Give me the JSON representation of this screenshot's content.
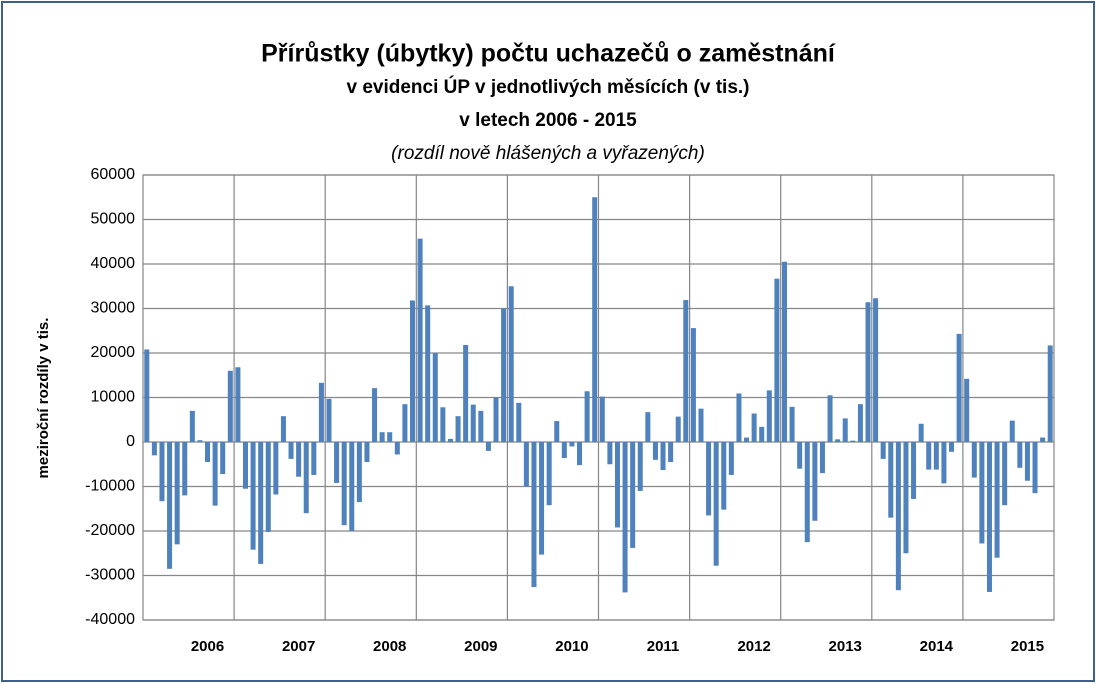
{
  "chart_data": {
    "type": "bar",
    "title": "Přírůstky (úbytky) počtu uchazečů o zaměstnání",
    "subtitle": "v evidenci ÚP v jednotlivých měsících (v tis.)",
    "subtitle2": "v letech 2006 - 2015",
    "note": "(rozdíl nově hlášených a vyřazených)",
    "y_label": "meziroční rozdíly v tis.",
    "categories": [
      null,
      null,
      null,
      null,
      null,
      null,
      null,
      null,
      "2006",
      null,
      null,
      null,
      null,
      null,
      null,
      null,
      null,
      null,
      null,
      null,
      "2007",
      null,
      null,
      null,
      null,
      null,
      null,
      null,
      null,
      null,
      null,
      null,
      "2008",
      null,
      null,
      null,
      null,
      null,
      null,
      null,
      null,
      null,
      null,
      null,
      "2009",
      null,
      null,
      null,
      null,
      null,
      null,
      null,
      null,
      null,
      null,
      null,
      "2010",
      null,
      null,
      null,
      null,
      null,
      null,
      null,
      null,
      null,
      null,
      null,
      "2011",
      null,
      null,
      null,
      null,
      null,
      null,
      null,
      null,
      null,
      null,
      null,
      "2012",
      null,
      null,
      null,
      null,
      null,
      null,
      null,
      null,
      null,
      null,
      null,
      "2013",
      null,
      null,
      null,
      null,
      null,
      null,
      null,
      null,
      null,
      null,
      null,
      "2014",
      null,
      null,
      null,
      null,
      null,
      null,
      null,
      null,
      null,
      null,
      null,
      "2015",
      null,
      null,
      null
    ],
    "values": [
      20800,
      -3000,
      -13300,
      -28500,
      -23000,
      -12000,
      7000,
      400,
      -4500,
      -14300,
      -7200,
      16000,
      16800,
      -10500,
      -24200,
      -27400,
      -20200,
      -11800,
      5800,
      -3800,
      -7800,
      -16000,
      -7400,
      13300,
      9700,
      -9200,
      -18700,
      -20000,
      -13500,
      -4500,
      12100,
      2200,
      2200,
      -2800,
      8500,
      31800,
      45700,
      30700,
      20000,
      7800,
      700,
      5800,
      21800,
      8400,
      7000,
      -2000,
      10000,
      30000,
      35000,
      8800,
      -10000,
      -32600,
      -25300,
      -14200,
      4700,
      -3600,
      -1000,
      -5200,
      11400,
      55000,
      10200,
      -5000,
      -19200,
      -33800,
      -23800,
      -11000,
      6700,
      -4000,
      -6300,
      -4500,
      5700,
      31900,
      25600,
      7500,
      -16500,
      -27800,
      -15200,
      -7400,
      10900,
      1000,
      6400,
      3400,
      11600,
      36700,
      40500,
      7900,
      -6000,
      -22500,
      -17700,
      -7000,
      10500,
      600,
      5300,
      300,
      8500,
      31400,
      32300,
      -3800,
      -17000,
      -33300,
      -25000,
      -12800,
      4100,
      -6200,
      -6200,
      -9300,
      -2200,
      24300,
      14200,
      -8000,
      -22800,
      -33700,
      -26000,
      -14200,
      4800,
      -5800,
      -8700,
      -11500,
      1000,
      21700
    ],
    "color": "#4f81bd",
    "ylim": [
      -40000,
      60000
    ],
    "yticks": [
      -40000,
      -30000,
      -20000,
      -10000,
      0,
      10000,
      20000,
      30000,
      40000,
      50000,
      60000
    ],
    "grid": true
  }
}
